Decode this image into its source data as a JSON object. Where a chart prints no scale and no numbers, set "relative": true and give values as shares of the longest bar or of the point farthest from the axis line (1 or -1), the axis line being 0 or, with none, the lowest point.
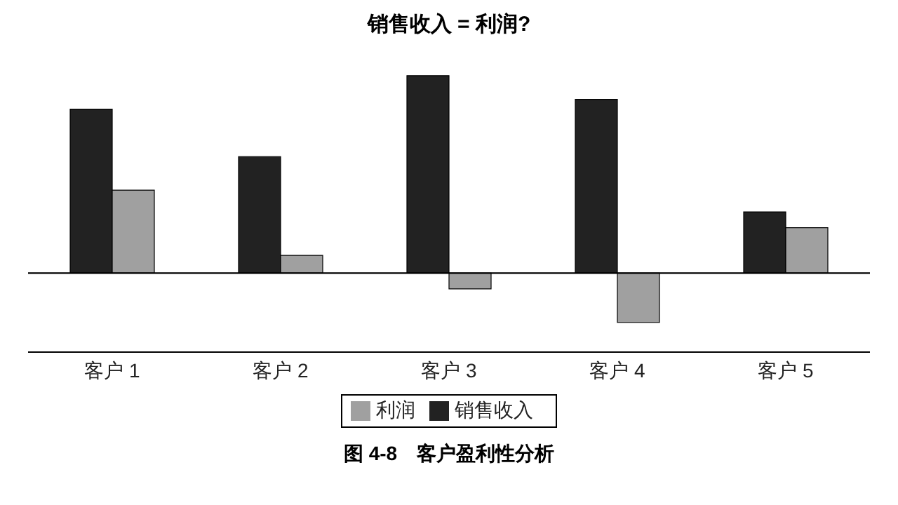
{
  "chart_data": {
    "type": "bar",
    "title": "销售收入 = 利润?",
    "categories": [
      "客户 1",
      "客户 2",
      "客户 3",
      "客户 4",
      "客户 5"
    ],
    "series": [
      {
        "name": "销售收入",
        "color": "#222222",
        "values": [
          0.83,
          0.59,
          1,
          0.88,
          0.31
        ]
      },
      {
        "name": "利润",
        "color": "#a0a0a0",
        "values": [
          0.42,
          0.09,
          -0.08,
          -0.25,
          0.23
        ]
      }
    ],
    "relative": true,
    "legend": "bottom",
    "annotations": [
      "图 4-8　客户盈利性分析"
    ]
  }
}
